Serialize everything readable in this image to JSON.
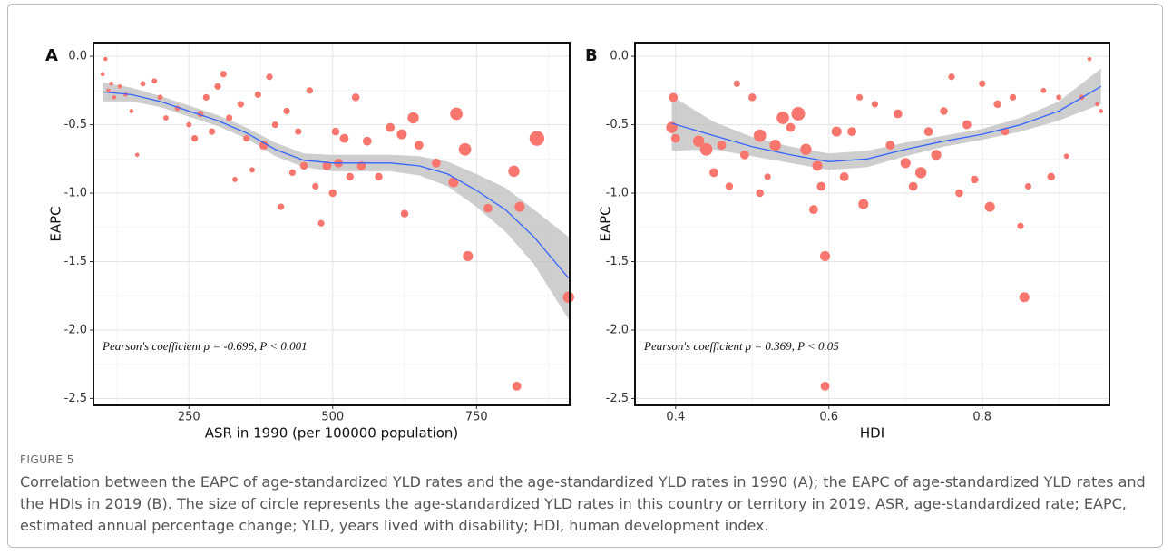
{
  "figure_label": "FIGURE 5",
  "caption": "Correlation between the EAPC of age-standardized YLD rates and the age-standardized YLD rates in 1990 (A); the EAPC of age-standardized YLD rates and the HDIs in 2019 (B). The size of circle represents the age-standardized YLD rates in this country or territory in 2019. ASR, age-standardized rate; EAPC, estimated annual percentage change; YLD, years lived with disability; HDI, human development index.",
  "chart_data": [
    {
      "type": "scatter",
      "panel": "A",
      "x_label": "ASR in 1990 (per 100000 population)",
      "y_label": "EAPC",
      "annotation": "Pearson's coefficient  ρ = -0.696, P < 0.001",
      "color": "#f8766d",
      "fit_color": "#3366ff",
      "band_color": "#bdbdbd",
      "xlim": [
        84,
        912
      ],
      "ylim": [
        -2.55,
        0.1
      ],
      "xticks": [
        250,
        500,
        750
      ],
      "minor_xticks": [
        125,
        375,
        625,
        875
      ],
      "yticks": [
        {
          "value": 0,
          "label": "0.0"
        },
        -0.5,
        {
          "value": -1,
          "label": "-1.0"
        },
        -1.5,
        {
          "value": -2,
          "label": "-2.0"
        },
        -2.5
      ],
      "minor_yticks": [
        -0.25,
        -0.75,
        -1.25,
        -1.75,
        -2.25
      ],
      "x": [
        100,
        105,
        110,
        115,
        120,
        130,
        140,
        150,
        160,
        170,
        190,
        200,
        210,
        230,
        250,
        260,
        270,
        280,
        290,
        300,
        310,
        320,
        330,
        340,
        350,
        360,
        370,
        380,
        390,
        400,
        410,
        420,
        430,
        440,
        450,
        460,
        470,
        480,
        490,
        500,
        505,
        510,
        520,
        530,
        540,
        550,
        560,
        580,
        600,
        620,
        625,
        640,
        650,
        680,
        710,
        715,
        730,
        735,
        770,
        815,
        820,
        825,
        855,
        910
      ],
      "values": [
        -0.13,
        -0.02,
        -0.25,
        -0.2,
        -0.3,
        -0.22,
        -0.28,
        -0.4,
        -0.72,
        -0.2,
        -0.18,
        -0.3,
        -0.45,
        -0.38,
        -0.5,
        -0.6,
        -0.42,
        -0.3,
        -0.55,
        -0.22,
        -0.13,
        -0.45,
        -0.9,
        -0.35,
        -0.6,
        -0.83,
        -0.28,
        -0.65,
        -0.15,
        -0.5,
        -1.1,
        -0.4,
        -0.85,
        -0.55,
        -0.8,
        -0.25,
        -0.95,
        -1.22,
        -0.8,
        -1.0,
        -0.55,
        -0.78,
        -0.6,
        -0.88,
        -0.3,
        -0.8,
        -0.62,
        -0.88,
        -0.52,
        -0.57,
        -1.15,
        -0.45,
        -0.65,
        -0.78,
        -0.92,
        -0.42,
        -0.68,
        -1.46,
        -1.11,
        -0.84,
        -2.41,
        -1.1,
        -0.6,
        -1.76
      ],
      "sizes": [
        1,
        1,
        1,
        1,
        1,
        1,
        1,
        1,
        1,
        1.5,
        1.5,
        1.5,
        1.5,
        1.5,
        1.5,
        2,
        2,
        2,
        2,
        2,
        2,
        2,
        1.5,
        2,
        2,
        1.5,
        2,
        3,
        2,
        2,
        2,
        2,
        2,
        2,
        2.5,
        2,
        2,
        2,
        3,
        2.5,
        2.5,
        3,
        3,
        2.5,
        2.5,
        3,
        3,
        2.5,
        3,
        3.5,
        2.5,
        4,
        3,
        3,
        3.5,
        4.5,
        4.5,
        3.5,
        3,
        4,
        3,
        3.5,
        5.5,
        4
      ],
      "fit": {
        "x": [
          100,
          150,
          200,
          250,
          300,
          350,
          400,
          450,
          500,
          550,
          600,
          650,
          700,
          750,
          800,
          850,
          910
        ],
        "y": [
          -0.26,
          -0.28,
          -0.33,
          -0.4,
          -0.47,
          -0.56,
          -0.68,
          -0.76,
          -0.78,
          -0.78,
          -0.78,
          -0.8,
          -0.86,
          -0.98,
          -1.12,
          -1.32,
          -1.62
        ],
        "lower": [
          -0.33,
          -0.33,
          -0.37,
          -0.44,
          -0.51,
          -0.6,
          -0.73,
          -0.81,
          -0.84,
          -0.84,
          -0.84,
          -0.87,
          -0.95,
          -1.1,
          -1.28,
          -1.52,
          -1.92
        ],
        "upper": [
          -0.19,
          -0.23,
          -0.29,
          -0.36,
          -0.43,
          -0.52,
          -0.63,
          -0.71,
          -0.72,
          -0.72,
          -0.72,
          -0.73,
          -0.77,
          -0.86,
          -0.96,
          -1.12,
          -1.32
        ]
      }
    },
    {
      "type": "scatter",
      "panel": "B",
      "x_label": "HDI",
      "y_label": "EAPC",
      "annotation": "Pearson's coefficient  ρ = 0.369, P < 0.05",
      "color": "#f8766d",
      "fit_color": "#3366ff",
      "band_color": "#bdbdbd",
      "xlim": [
        0.347,
        0.966
      ],
      "ylim": [
        -2.55,
        0.1
      ],
      "xticks": [
        0.4,
        0.6,
        0.8
      ],
      "minor_xticks": [
        0.5,
        0.7,
        0.9
      ],
      "yticks": [
        {
          "value": 0,
          "label": "0.0"
        },
        -0.5,
        {
          "value": -1,
          "label": "-1.0"
        },
        -1.5,
        {
          "value": -2,
          "label": "-2.0"
        },
        -2.5
      ],
      "minor_yticks": [
        -0.25,
        -0.75,
        -1.25,
        -1.75,
        -2.25
      ],
      "x": [
        0.395,
        0.397,
        0.4,
        0.43,
        0.44,
        0.45,
        0.46,
        0.47,
        0.48,
        0.49,
        0.5,
        0.51,
        0.51,
        0.52,
        0.53,
        0.54,
        0.55,
        0.56,
        0.57,
        0.58,
        0.585,
        0.59,
        0.595,
        0.595,
        0.61,
        0.62,
        0.63,
        0.64,
        0.645,
        0.66,
        0.68,
        0.69,
        0.7,
        0.71,
        0.72,
        0.73,
        0.74,
        0.75,
        0.76,
        0.77,
        0.78,
        0.79,
        0.8,
        0.81,
        0.82,
        0.83,
        0.84,
        0.85,
        0.855,
        0.86,
        0.88,
        0.89,
        0.9,
        0.91,
        0.93,
        0.94,
        0.95,
        0.955
      ],
      "values": [
        -0.52,
        -0.3,
        -0.6,
        -0.62,
        -0.68,
        -0.85,
        -0.65,
        -0.95,
        -0.2,
        -0.72,
        -0.3,
        -0.58,
        -1.0,
        -0.88,
        -0.65,
        -0.45,
        -0.52,
        -0.42,
        -0.68,
        -1.12,
        -0.8,
        -0.95,
        -1.46,
        -2.41,
        -0.55,
        -0.88,
        -0.55,
        -0.3,
        -1.08,
        -0.35,
        -0.65,
        -0.42,
        -0.78,
        -0.95,
        -0.85,
        -0.55,
        -0.72,
        -0.4,
        -0.15,
        -1.0,
        -0.5,
        -0.9,
        -0.2,
        -1.1,
        -0.35,
        -0.55,
        -0.3,
        -1.24,
        -1.76,
        -0.95,
        -0.25,
        -0.88,
        -0.3,
        -0.73,
        -0.3,
        -0.02,
        -0.35,
        -0.4
      ],
      "sizes": [
        4,
        3,
        3,
        4,
        4.5,
        3,
        3,
        2.5,
        2,
        3,
        2.5,
        4.5,
        2.5,
        2,
        4,
        4.5,
        3,
        5,
        4,
        3,
        3.5,
        3,
        3.5,
        3,
        3.5,
        3,
        3,
        2,
        3.5,
        2,
        3,
        3,
        3.5,
        3,
        4,
        3,
        3.5,
        2.5,
        2,
        2.5,
        3,
        2.5,
        2,
        3.5,
        2.5,
        2.5,
        2,
        2,
        3.5,
        2,
        1.5,
        2.5,
        1.5,
        1.5,
        1.5,
        1,
        1,
        1
      ],
      "fit": {
        "x": [
          0.395,
          0.45,
          0.5,
          0.55,
          0.6,
          0.65,
          0.7,
          0.75,
          0.8,
          0.85,
          0.9,
          0.955
        ],
        "y": [
          -0.49,
          -0.58,
          -0.66,
          -0.72,
          -0.77,
          -0.75,
          -0.68,
          -0.62,
          -0.57,
          -0.5,
          -0.4,
          -0.22
        ],
        "lower": [
          -0.69,
          -0.68,
          -0.73,
          -0.78,
          -0.83,
          -0.81,
          -0.73,
          -0.66,
          -0.61,
          -0.55,
          -0.47,
          -0.35
        ],
        "upper": [
          -0.29,
          -0.48,
          -0.59,
          -0.66,
          -0.71,
          -0.69,
          -0.63,
          -0.58,
          -0.53,
          -0.45,
          -0.33,
          -0.09
        ]
      }
    }
  ]
}
